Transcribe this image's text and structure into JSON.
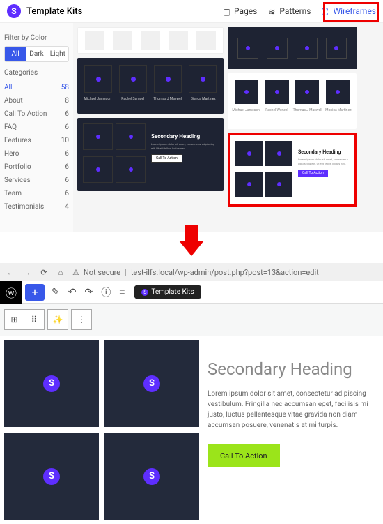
{
  "top": {
    "title": "Template Kits",
    "nav": {
      "pages": "Pages",
      "patterns": "Patterns",
      "wireframes": "Wireframes"
    }
  },
  "sidebar": {
    "filterTitle": "Filter by Color",
    "buttons": {
      "all": "All",
      "dark": "Dark",
      "light": "Light"
    },
    "catTitle": "Categories",
    "cats": [
      {
        "label": "All",
        "count": "58"
      },
      {
        "label": "About",
        "count": "8"
      },
      {
        "label": "Call To Action",
        "count": "6"
      },
      {
        "label": "FAQ",
        "count": "6"
      },
      {
        "label": "Features",
        "count": "10"
      },
      {
        "label": "Hero",
        "count": "6"
      },
      {
        "label": "Portfolio",
        "count": "6"
      },
      {
        "label": "Services",
        "count": "6"
      },
      {
        "label": "Team",
        "count": "6"
      },
      {
        "label": "Testimonials",
        "count": "4"
      }
    ]
  },
  "thumbs": {
    "names1": [
      "Michael Jameson",
      "Rachel Samuel",
      "Thomas J Maxwell",
      "Bianca Martinez"
    ],
    "names2": [
      "Michael Jameson",
      "Rachel Wenzel",
      "Thomas J Maxwell",
      "Monica Martinez"
    ],
    "secHeading": "Secondary Heading",
    "lipsum_short": "Lorem ipsum dolor sit amet, consectetur adipiscing elit. Ut elit tellus, luctus nec.",
    "btn_dark": "Call To Action",
    "btn_light": "Call To Action"
  },
  "browser": {
    "notSecure": "Not secure",
    "url": "test-ilfs.local/wp-admin/post.php?post=13&action=edit"
  },
  "wpbar": {
    "kitBtn": "Template Kits"
  },
  "editor": {
    "heading": "Secondary Heading",
    "body": "Lorem ipsum dolor sit amet, consectetur adipiscing vestibulum. Fringilla nec accumsan eget, facilisis mi justo, luctus pellentesque vitae gravida non diam accumsan posuere, venenatis at mi turpis.",
    "cta": "Call To Action"
  }
}
